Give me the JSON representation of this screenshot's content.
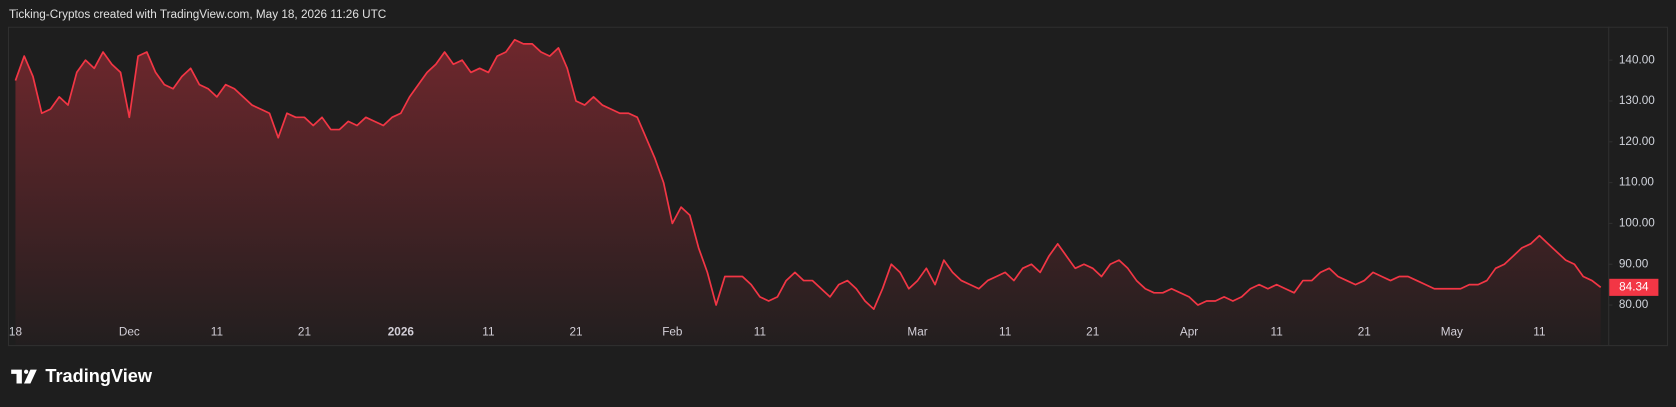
{
  "header": "Ticking-Cryptos created with TradingView.com, May 18, 2026 11:26 UTC",
  "brand": "TradingView",
  "chart_data": {
    "type": "area",
    "color": "#f23645",
    "grid": false,
    "categories": [
      "18",
      null,
      null,
      null,
      null,
      null,
      null,
      null,
      null,
      null,
      null,
      null,
      null,
      "Dec",
      null,
      null,
      null,
      null,
      null,
      null,
      null,
      null,
      null,
      "11",
      null,
      null,
      null,
      null,
      null,
      null,
      null,
      null,
      null,
      "21",
      null,
      null,
      null,
      null,
      null,
      null,
      null,
      null,
      null,
      null,
      "2026",
      null,
      null,
      null,
      null,
      null,
      null,
      null,
      null,
      null,
      "11",
      null,
      null,
      null,
      null,
      null,
      null,
      null,
      null,
      null,
      "21",
      null,
      null,
      null,
      null,
      null,
      null,
      null,
      null,
      null,
      null,
      "Feb",
      null,
      null,
      null,
      null,
      null,
      null,
      null,
      null,
      null,
      "11",
      null,
      null,
      null,
      null,
      null,
      null,
      null,
      null,
      null,
      null,
      null,
      null,
      null,
      null,
      null,
      null,
      null,
      "Mar",
      null,
      null,
      null,
      null,
      null,
      null,
      null,
      null,
      null,
      "11",
      null,
      null,
      null,
      null,
      null,
      null,
      null,
      null,
      null,
      "21",
      null,
      null,
      null,
      null,
      null,
      null,
      null,
      null,
      null,
      null,
      "Apr",
      null,
      null,
      null,
      null,
      null,
      null,
      null,
      null,
      null,
      "11",
      null,
      null,
      null,
      null,
      null,
      null,
      null,
      null,
      null,
      "21",
      null,
      null,
      null,
      null,
      null,
      null,
      null,
      null,
      null,
      "May",
      null,
      null,
      null,
      null,
      null,
      null,
      null,
      null,
      null,
      "11",
      null,
      null,
      null,
      null,
      null,
      null,
      null
    ],
    "values": [
      135,
      141,
      136,
      127,
      128,
      131,
      129,
      137,
      140,
      138,
      142,
      139,
      137,
      126,
      141,
      142,
      137,
      134,
      133,
      136,
      138,
      134,
      133,
      131,
      134,
      133,
      131,
      129,
      128,
      127,
      121,
      127,
      126,
      126,
      124,
      126,
      123,
      123,
      125,
      124,
      126,
      125,
      124,
      126,
      127,
      131,
      134,
      137,
      139,
      142,
      139,
      140,
      137,
      138,
      137,
      141,
      142,
      145,
      144,
      144,
      142,
      141,
      143,
      138,
      130,
      129,
      131,
      129,
      128,
      127,
      127,
      126,
      121,
      116,
      110,
      100,
      104,
      102,
      94,
      88,
      80,
      87,
      87,
      87,
      85,
      82,
      81,
      82,
      86,
      88,
      86,
      86,
      84,
      82,
      85,
      86,
      84,
      81,
      79,
      84,
      90,
      88,
      84,
      86,
      89,
      85,
      91,
      88,
      86,
      85,
      84,
      86,
      87,
      88,
      86,
      89,
      90,
      88,
      92,
      95,
      92,
      89,
      90,
      89,
      87,
      90,
      91,
      89,
      86,
      84,
      83,
      83,
      84,
      83,
      82,
      80,
      81,
      81,
      82,
      81,
      82,
      84,
      85,
      84,
      85,
      84,
      83,
      86,
      86,
      88,
      89,
      87,
      86,
      85,
      86,
      88,
      87,
      86,
      87,
      87,
      86,
      85,
      84,
      84,
      84,
      84,
      85,
      85,
      86,
      89,
      90,
      92,
      94,
      95,
      97,
      95,
      93,
      91,
      90,
      87,
      86,
      84.34
    ],
    "ylim": [
      70.2,
      148.2
    ],
    "yticks": [
      {
        "value": 80,
        "label": "80.00"
      },
      {
        "value": 90,
        "label": "90.00"
      },
      {
        "value": 100,
        "label": "100.00"
      },
      {
        "value": 110,
        "label": "110.00"
      },
      {
        "value": 120,
        "label": "120.00"
      },
      {
        "value": 130,
        "label": "130.00"
      },
      {
        "value": 140,
        "label": "140.00"
      }
    ]
  }
}
